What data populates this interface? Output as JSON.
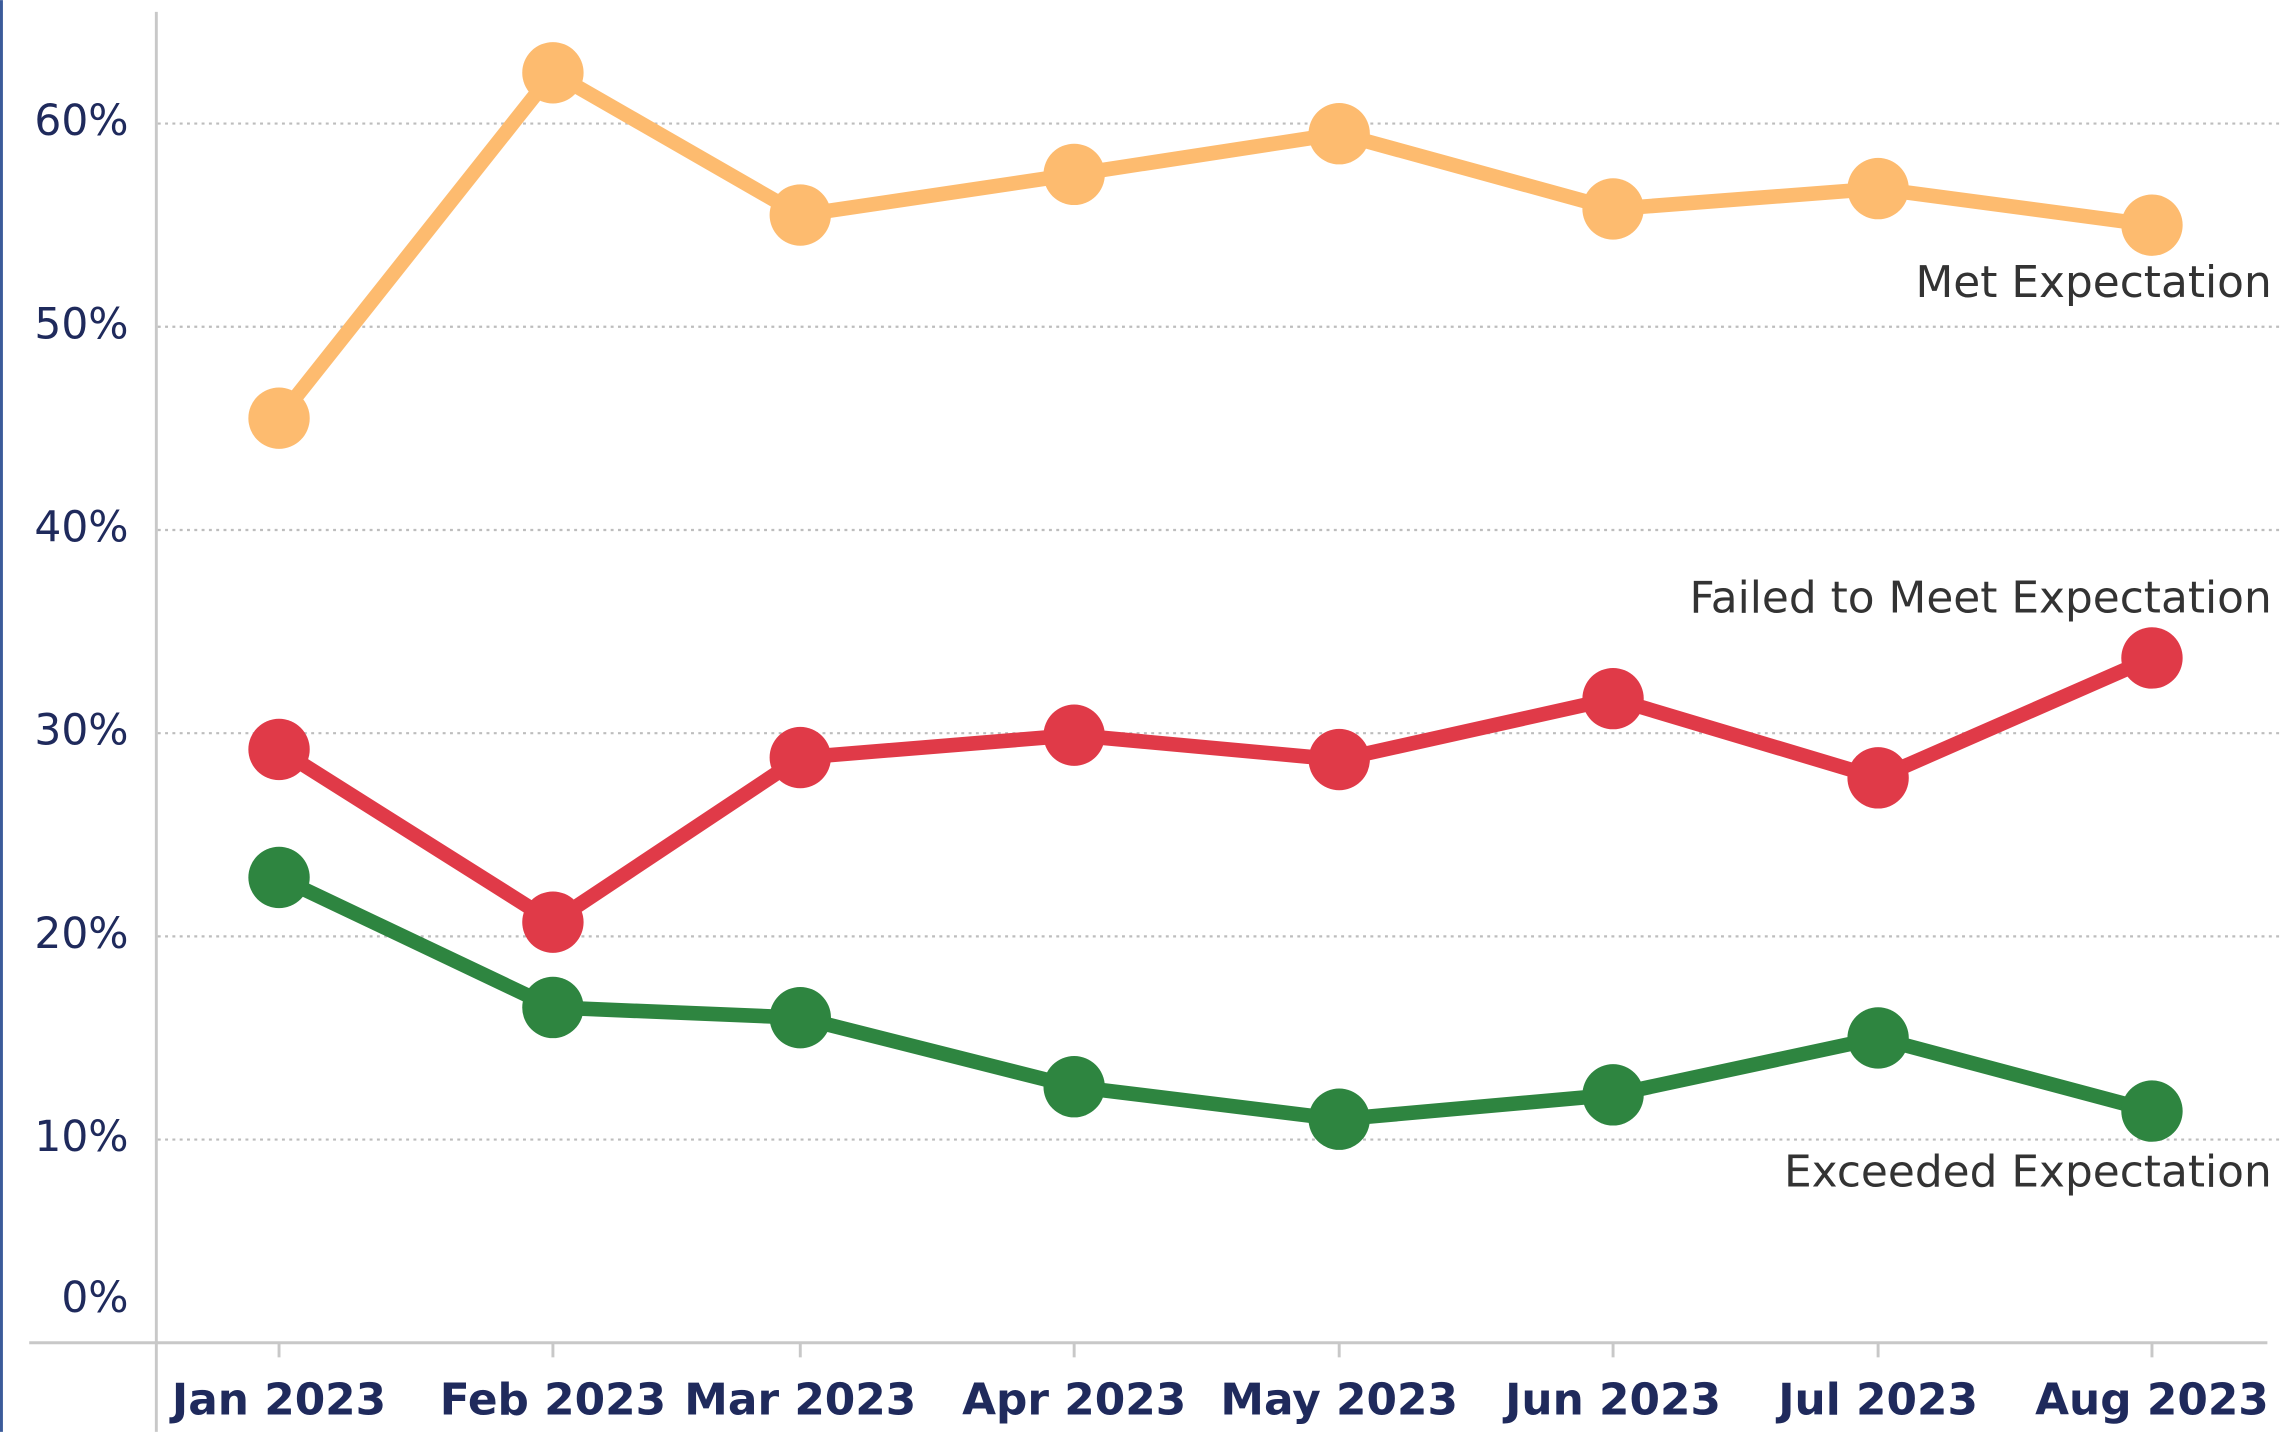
{
  "chart_data": {
    "type": "line",
    "categories": [
      "Jan 2023",
      "Feb 2023",
      "Mar 2023",
      "Apr 2023",
      "May 2023",
      "Jun 2023",
      "Jul 2023",
      "Aug 2023"
    ],
    "series": [
      {
        "name": "Met Expectation",
        "color": "#fdbb6f",
        "values": [
          45.5,
          62.5,
          55.5,
          57.5,
          59.5,
          55.8,
          56.8,
          55.0
        ]
      },
      {
        "name": "Failed to Meet Expectation",
        "color": "#e03a48",
        "values": [
          29.2,
          20.7,
          28.8,
          29.9,
          28.7,
          31.7,
          27.8,
          33.7
        ]
      },
      {
        "name": "Exceeded Expectation",
        "color": "#2e8540",
        "values": [
          22.9,
          16.5,
          16.0,
          12.6,
          11.0,
          12.2,
          15.0,
          11.4
        ]
      }
    ],
    "ylim": [
      0,
      65.5
    ],
    "yticks": [
      {
        "value": 0,
        "label": "0%"
      },
      {
        "value": 10,
        "label": "10%"
      },
      {
        "value": 20,
        "label": "20%"
      },
      {
        "value": 30,
        "label": "30%"
      },
      {
        "value": 40,
        "label": "40%"
      },
      {
        "value": 50,
        "label": "50%"
      },
      {
        "value": 60,
        "label": "60%"
      }
    ],
    "grid": true
  }
}
